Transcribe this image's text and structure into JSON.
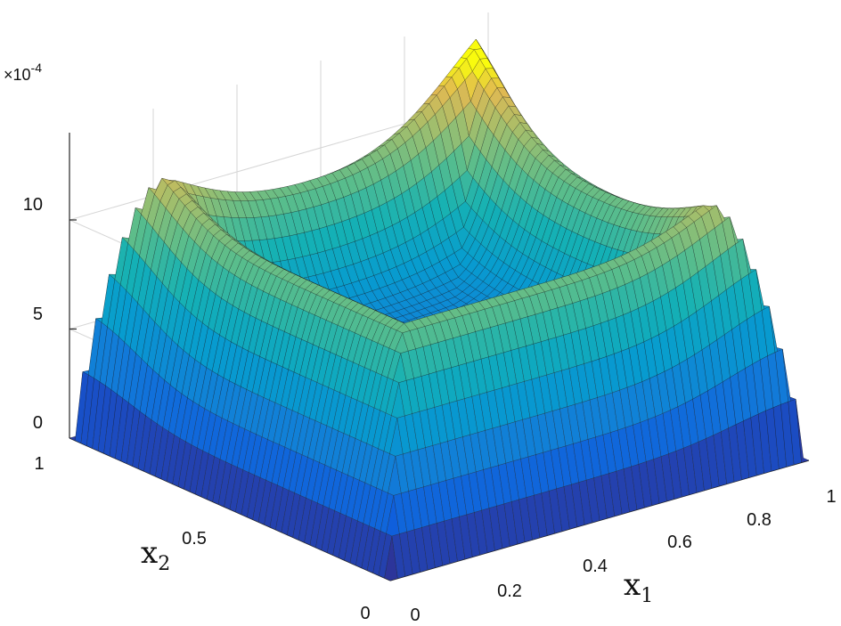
{
  "chart_data": {
    "type": "surface3d",
    "title": "",
    "xlabel": "x",
    "xlabel_sub": "1",
    "ylabel": "x",
    "ylabel_sub": "2",
    "zlabel": "",
    "z_multiplier": "×10",
    "z_exponent": "-4",
    "xlim": [
      0,
      1
    ],
    "ylim": [
      0,
      1
    ],
    "zlim": [
      0,
      14
    ],
    "x_ticks": [
      "0",
      "0.2",
      "0.4",
      "0.6",
      "0.8",
      "1"
    ],
    "y_ticks": [
      "0",
      "0.5",
      "1"
    ],
    "z_ticks": [
      "0",
      "5",
      "10"
    ],
    "x_tick_values": [
      0,
      0.2,
      0.4,
      0.6,
      0.8,
      1
    ],
    "y_tick_values": [
      0,
      0.5,
      1
    ],
    "z_tick_values": [
      0,
      5,
      10
    ],
    "colormap": "parula",
    "grid": true,
    "features": {
      "plateau_level": 9.5,
      "boundary_value": 0,
      "corner_peaks": [
        {
          "x1": 0,
          "x2": 0,
          "z": 9.5
        },
        {
          "x1": 1,
          "x2": 0,
          "z": 12.5
        },
        {
          "x1": 0,
          "x2": 1,
          "z": 13.5
        },
        {
          "x1": 1,
          "x2": 1,
          "z": 17.5
        }
      ],
      "center_min": 4
    },
    "colors": {
      "low": "#352a87",
      "mid": "#1fa9c7",
      "high": "#f9fb0e",
      "base_contour": "#e8e06a"
    }
  }
}
